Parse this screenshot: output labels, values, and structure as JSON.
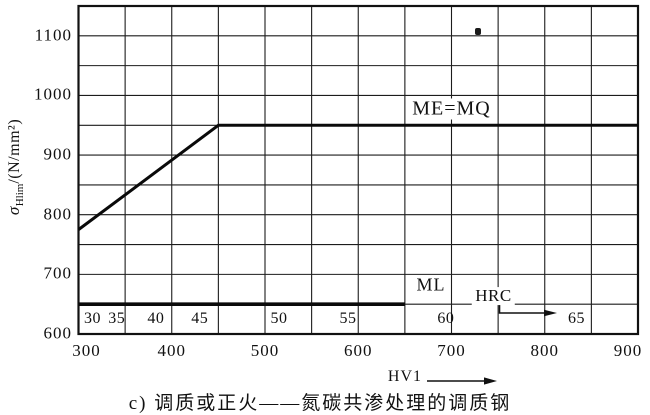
{
  "chart_data": {
    "type": "line",
    "caption": "c) 调质或正火——氮碳共渗处理的调质钢",
    "x_axis_label": "HV1",
    "y_axis": {
      "symbol": "σ",
      "subscript": "Hlim",
      "unit": "/(N/mm²)"
    },
    "xlim": [
      300,
      900
    ],
    "ylim": [
      600,
      1150
    ],
    "grid_step": 50,
    "grid": "on",
    "x_ticks": [
      300,
      400,
      500,
      600,
      700,
      800,
      900
    ],
    "y_ticks": [
      600,
      700,
      800,
      900,
      1000,
      1100
    ],
    "series": [
      {
        "name": "ME=MQ",
        "points": [
          [
            300,
            775
          ],
          [
            450,
            950
          ],
          [
            900,
            950
          ]
        ]
      },
      {
        "name": "ML",
        "points": [
          [
            300,
            650
          ],
          [
            650,
            650
          ]
        ]
      }
    ],
    "hrc_scale": {
      "label": "HRC",
      "ticks": [
        {
          "label": "30",
          "hv": 315
        },
        {
          "label": "35",
          "hv": 341
        },
        {
          "label": "40",
          "hv": 383
        },
        {
          "label": "45",
          "hv": 430
        },
        {
          "label": "50",
          "hv": 515
        },
        {
          "label": "55",
          "hv": 589
        },
        {
          "label": "60",
          "hv": 694
        },
        {
          "label": "65",
          "hv": 834
        }
      ]
    },
    "annotations": [
      {
        "text": "ME=MQ",
        "x": 700,
        "y": 977
      },
      {
        "text": "ML",
        "x": 678,
        "y": 682
      },
      {
        "text": "HRC",
        "x": 745,
        "y": 664
      }
    ]
  }
}
